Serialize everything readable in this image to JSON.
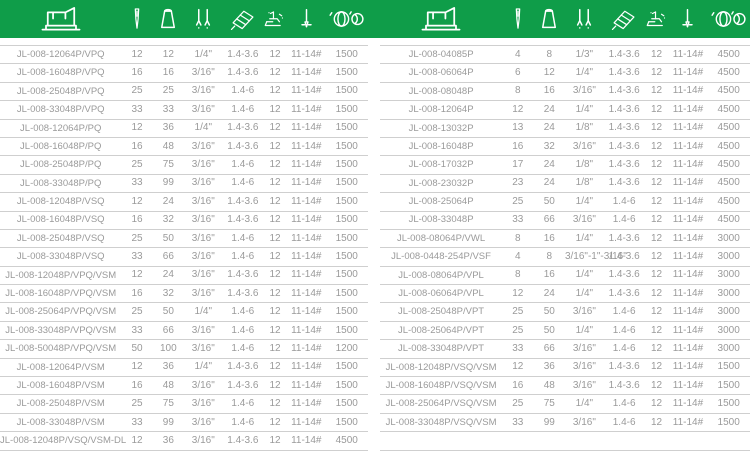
{
  "theme": {
    "header_bg": "#0f9d49",
    "row_line": "#cfcfcf",
    "text_color": "#9a9a9a",
    "icon_color": "#ffffff",
    "background": "#ffffff"
  },
  "column_icons": [
    "sewing-machine-icon",
    "needle-icon",
    "thread-cone-icon",
    "twin-needles-icon",
    "fabric-pattern-icon",
    "stitch-adjust-icon",
    "needle-bar-icon",
    "thread-spools-icon"
  ],
  "column_keys": [
    "model",
    "needles",
    "threads",
    "gauge",
    "stitch-length",
    "foot",
    "needle-size",
    "speed"
  ],
  "tables": {
    "left": {
      "rows": [
        [
          "JL-008-12064P/VPQ",
          "12",
          "12",
          "1/4\"",
          "1.4-3.6",
          "12",
          "11-14#",
          "1500"
        ],
        [
          "JL-008-16048P/VPQ",
          "16",
          "16",
          "3/16\"",
          "1.4-3.6",
          "12",
          "11-14#",
          "1500"
        ],
        [
          "JL-008-25048P/VPQ",
          "25",
          "25",
          "3/16\"",
          "1.4-6",
          "12",
          "11-14#",
          "1500"
        ],
        [
          "JL-008-33048P/VPQ",
          "33",
          "33",
          "3/16\"",
          "1.4-6",
          "12",
          "11-14#",
          "1500"
        ],
        [
          "JL-008-12064P/PQ",
          "12",
          "36",
          "1/4\"",
          "1.4-3.6",
          "12",
          "11-14#",
          "1500"
        ],
        [
          "JL-008-16048P/PQ",
          "16",
          "48",
          "3/16\"",
          "1.4-3.6",
          "12",
          "11-14#",
          "1500"
        ],
        [
          "JL-008-25048P/PQ",
          "25",
          "75",
          "3/16\"",
          "1.4-6",
          "12",
          "11-14#",
          "1500"
        ],
        [
          "JL-008-33048P/PQ",
          "33",
          "99",
          "3/16\"",
          "1.4-6",
          "12",
          "11-14#",
          "1500"
        ],
        [
          "JL-008-12048P/VSQ",
          "12",
          "24",
          "3/16\"",
          "1.4-3.6",
          "12",
          "11-14#",
          "1500"
        ],
        [
          "JL-008-16048P/VSQ",
          "16",
          "32",
          "3/16\"",
          "1.4-3.6",
          "12",
          "11-14#",
          "1500"
        ],
        [
          "JL-008-25048P/VSQ",
          "25",
          "50",
          "3/16\"",
          "1.4-6",
          "12",
          "11-14#",
          "1500"
        ],
        [
          "JL-008-33048P/VSQ",
          "33",
          "66",
          "3/16\"",
          "1.4-6",
          "12",
          "11-14#",
          "1500"
        ],
        [
          "JL-008-12048P/VPQ/VSM",
          "12",
          "24",
          "3/16\"",
          "1.4-3.6",
          "12",
          "11-14#",
          "1500"
        ],
        [
          "JL-008-16048P/VPQ/VSM",
          "16",
          "32",
          "3/16\"",
          "1.4-3.6",
          "12",
          "11-14#",
          "1500"
        ],
        [
          "JL-008-25064P/VPQ/VSM",
          "25",
          "50",
          "1/4\"",
          "1.4-6",
          "12",
          "11-14#",
          "1500"
        ],
        [
          "JL-008-33048P/VPQ/VSM",
          "33",
          "66",
          "3/16\"",
          "1.4-6",
          "12",
          "11-14#",
          "1500"
        ],
        [
          "JL-008-50048P/VPQ/VSM",
          "50",
          "100",
          "3/16\"",
          "1.4-6",
          "12",
          "11-14#",
          "1200"
        ],
        [
          "JL-008-12064P/VSM",
          "12",
          "36",
          "1/4\"",
          "1.4-3.6",
          "12",
          "11-14#",
          "1500"
        ],
        [
          "JL-008-16048P/VSM",
          "16",
          "48",
          "3/16\"",
          "1.4-3.6",
          "12",
          "11-14#",
          "1500"
        ],
        [
          "JL-008-25048P/VSM",
          "25",
          "75",
          "3/16\"",
          "1.4-6",
          "12",
          "11-14#",
          "1500"
        ],
        [
          "JL-008-33048P/VSM",
          "33",
          "99",
          "3/16\"",
          "1.4-6",
          "12",
          "11-14#",
          "1500"
        ],
        [
          "JL-008-12048P/VSQ/VSM-DL",
          "12",
          "36",
          "3/16\"",
          "1.4-3.6",
          "12",
          "11-14#",
          "4500"
        ]
      ]
    },
    "right": {
      "rows": [
        [
          "JL-008-04085P",
          "4",
          "8",
          "1/3\"",
          "1.4-3.6",
          "12",
          "11-14#",
          "4500"
        ],
        [
          "JL-008-06064P",
          "6",
          "12",
          "1/4\"",
          "1.4-3.6",
          "12",
          "11-14#",
          "4500"
        ],
        [
          "JL-008-08048P",
          "8",
          "16",
          "3/16\"",
          "1.4-3.6",
          "12",
          "11-14#",
          "4500"
        ],
        [
          "JL-008-12064P",
          "12",
          "24",
          "1/4\"",
          "1.4-3.6",
          "12",
          "11-14#",
          "4500"
        ],
        [
          "JL-008-13032P",
          "13",
          "24",
          "1/8\"",
          "1.4-3.6",
          "12",
          "11-14#",
          "4500"
        ],
        [
          "JL-008-16048P",
          "16",
          "32",
          "3/16\"",
          "1.4-3.6",
          "12",
          "11-14#",
          "4500"
        ],
        [
          "JL-008-17032P",
          "17",
          "24",
          "1/8\"",
          "1.4-3.6",
          "12",
          "11-14#",
          "4500"
        ],
        [
          "JL-008-23032P",
          "23",
          "24",
          "1/8\"",
          "1.4-3.6",
          "12",
          "11-14#",
          "4500"
        ],
        [
          "JL-008-25064P",
          "25",
          "50",
          "1/4\"",
          "1.4-6",
          "12",
          "11-14#",
          "4500"
        ],
        [
          "JL-008-33048P",
          "33",
          "66",
          "3/16\"",
          "1.4-6",
          "12",
          "11-14#",
          "4500"
        ],
        [
          "JL-008-08064P/VWL",
          "8",
          "16",
          "1/4\"",
          "1.4-3.6",
          "12",
          "11-14#",
          "3000"
        ],
        [
          "JL-008-0448-254P/VSF",
          "4",
          "8",
          "3/16\"-1\"-3/16\"",
          "1.4-3.6",
          "12",
          "11-14#",
          "3000"
        ],
        [
          "JL-008-08064P/VPL",
          "8",
          "16",
          "1/4\"",
          "1.4-3.6",
          "12",
          "11-14#",
          "3000"
        ],
        [
          "JL-008-06064P/VPL",
          "12",
          "24",
          "1/4\"",
          "1.4-3.6",
          "12",
          "11-14#",
          "3000"
        ],
        [
          "JL-008-25048P/VPT",
          "25",
          "50",
          "3/16\"",
          "1.4-6",
          "12",
          "11-14#",
          "3000"
        ],
        [
          "JL-008-25064P/VPT",
          "25",
          "50",
          "1/4\"",
          "1.4-6",
          "12",
          "11-14#",
          "3000"
        ],
        [
          "JL-008-33048P/VPT",
          "33",
          "66",
          "3/16\"",
          "1.4-6",
          "12",
          "11-14#",
          "3000"
        ],
        [
          "JL-008-12048P/VSQ/VSM",
          "12",
          "36",
          "3/16\"",
          "1.4-3.6",
          "12",
          "11-14#",
          "1500"
        ],
        [
          "JL-008-16048P/VSQ/VSM",
          "16",
          "48",
          "3/16\"",
          "1.4-3.6",
          "12",
          "11-14#",
          "1500"
        ],
        [
          "JL-008-25064P/VSQ/VSM",
          "25",
          "75",
          "1/4\"",
          "1.4-6",
          "12",
          "11-14#",
          "1500"
        ],
        [
          "JL-008-33048P/VSQ/VSM",
          "33",
          "99",
          "3/16\"",
          "1.4-6",
          "12",
          "11-14#",
          "1500"
        ]
      ],
      "trailing_empty_row": true
    }
  }
}
